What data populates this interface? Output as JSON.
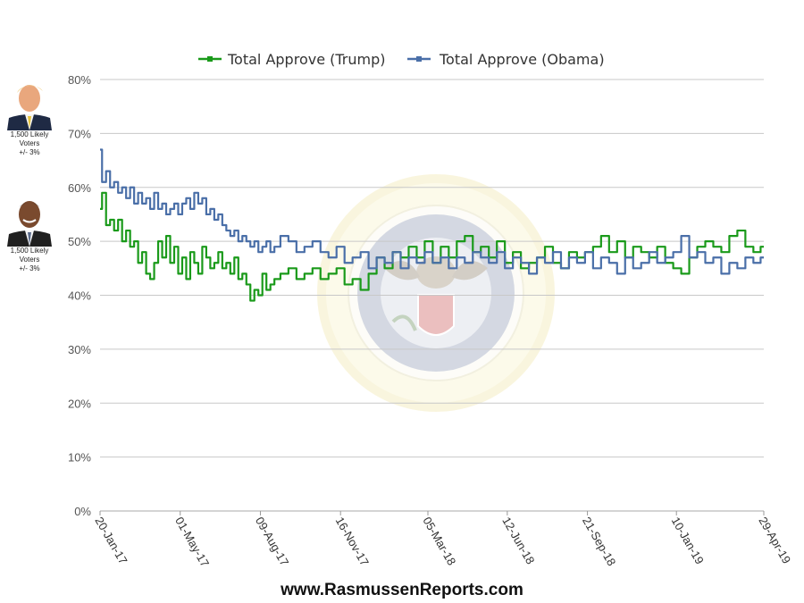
{
  "sidebar": {
    "cards": [
      {
        "name": "trump",
        "caption_line1": "1,500 Likely",
        "caption_line2": "Voters",
        "caption_line3": "+/- 3%"
      },
      {
        "name": "obama",
        "caption_line1": "1,500 Likely",
        "caption_line2": "Voters",
        "caption_line3": "+/- 3%"
      }
    ]
  },
  "footer": {
    "text": "www.RasmussenReports.com"
  },
  "chart_data": {
    "type": "line",
    "title": "",
    "xlabel": "",
    "ylabel": "",
    "ylim": [
      0,
      80
    ],
    "y_ticks": [
      "0%",
      "10%",
      "20%",
      "30%",
      "40%",
      "50%",
      "60%",
      "70%",
      "80%"
    ],
    "x_tick_labels": [
      "20-Jan-17",
      "01-May-17",
      "09-Aug-17",
      "16-Nov-17",
      "05-Mar-18",
      "12-Jun-18",
      "21-Sep-18",
      "10-Jan-19",
      "29-Apr-19"
    ],
    "x_tick_positions": [
      0,
      100,
      200,
      300,
      409,
      508,
      608,
      719,
      828
    ],
    "x_domain_days": [
      0,
      828
    ],
    "grid": true,
    "legend_position": "top-center",
    "watermark": "seal",
    "series": [
      {
        "name": "Total Approve (Trump)",
        "color": "#1a9a1a",
        "x": [
          0,
          5,
          10,
          15,
          20,
          25,
          30,
          35,
          40,
          45,
          50,
          55,
          60,
          65,
          70,
          75,
          80,
          85,
          90,
          95,
          100,
          105,
          110,
          115,
          120,
          125,
          130,
          135,
          140,
          145,
          150,
          155,
          160,
          165,
          170,
          175,
          180,
          185,
          190,
          195,
          200,
          205,
          210,
          215,
          220,
          230,
          240,
          250,
          260,
          270,
          280,
          290,
          300,
          310,
          320,
          330,
          340,
          350,
          360,
          370,
          380,
          390,
          400,
          410,
          420,
          430,
          440,
          450,
          460,
          470,
          480,
          490,
          500,
          510,
          520,
          530,
          540,
          550,
          560,
          570,
          580,
          590,
          600,
          610,
          620,
          630,
          640,
          650,
          660,
          670,
          680,
          690,
          700,
          710,
          720,
          730,
          740,
          750,
          760,
          770,
          780,
          790,
          800,
          810,
          820,
          828
        ],
        "values": [
          56,
          59,
          53,
          54,
          52,
          54,
          50,
          52,
          49,
          50,
          46,
          48,
          44,
          43,
          46,
          50,
          47,
          51,
          46,
          49,
          44,
          47,
          43,
          48,
          46,
          44,
          49,
          47,
          45,
          46,
          48,
          45,
          46,
          44,
          47,
          43,
          44,
          42,
          39,
          41,
          40,
          44,
          41,
          42,
          43,
          44,
          45,
          43,
          44,
          45,
          43,
          44,
          45,
          42,
          43,
          41,
          44,
          47,
          45,
          48,
          47,
          49,
          47,
          50,
          46,
          49,
          47,
          50,
          51,
          48,
          49,
          47,
          50,
          46,
          48,
          45,
          46,
          47,
          49,
          46,
          45,
          48,
          47,
          48,
          49,
          51,
          48,
          50,
          47,
          49,
          48,
          47,
          49,
          46,
          45,
          44,
          47,
          49,
          50,
          49,
          48,
          51,
          52,
          49,
          48,
          49
        ]
      },
      {
        "name": "Total Approve (Obama)",
        "color": "#4a6fa8",
        "x": [
          0,
          5,
          10,
          15,
          20,
          25,
          30,
          35,
          40,
          45,
          50,
          55,
          60,
          65,
          70,
          75,
          80,
          85,
          90,
          95,
          100,
          105,
          110,
          115,
          120,
          125,
          130,
          135,
          140,
          145,
          150,
          155,
          160,
          165,
          170,
          175,
          180,
          185,
          190,
          195,
          200,
          205,
          210,
          215,
          220,
          230,
          240,
          250,
          260,
          270,
          280,
          290,
          300,
          310,
          320,
          330,
          340,
          350,
          360,
          370,
          380,
          390,
          400,
          410,
          420,
          430,
          440,
          450,
          460,
          470,
          480,
          490,
          500,
          510,
          520,
          530,
          540,
          550,
          560,
          570,
          580,
          590,
          600,
          610,
          620,
          630,
          640,
          650,
          660,
          670,
          680,
          690,
          700,
          710,
          720,
          730,
          740,
          750,
          760,
          770,
          780,
          790,
          800,
          810,
          820,
          828
        ],
        "values": [
          67,
          61,
          63,
          60,
          61,
          59,
          60,
          58,
          60,
          57,
          59,
          57,
          58,
          56,
          59,
          56,
          57,
          55,
          56,
          57,
          55,
          57,
          58,
          56,
          59,
          57,
          58,
          55,
          56,
          54,
          55,
          53,
          52,
          51,
          52,
          50,
          51,
          50,
          49,
          50,
          48,
          49,
          50,
          48,
          49,
          51,
          50,
          48,
          49,
          50,
          48,
          47,
          49,
          46,
          47,
          48,
          45,
          47,
          46,
          48,
          45,
          47,
          46,
          48,
          46,
          47,
          45,
          47,
          46,
          48,
          47,
          46,
          48,
          45,
          47,
          46,
          44,
          47,
          46,
          48,
          45,
          47,
          46,
          48,
          45,
          47,
          46,
          44,
          47,
          45,
          46,
          48,
          46,
          47,
          48,
          51,
          47,
          48,
          46,
          47,
          44,
          46,
          45,
          47,
          46,
          47
        ]
      }
    ]
  }
}
